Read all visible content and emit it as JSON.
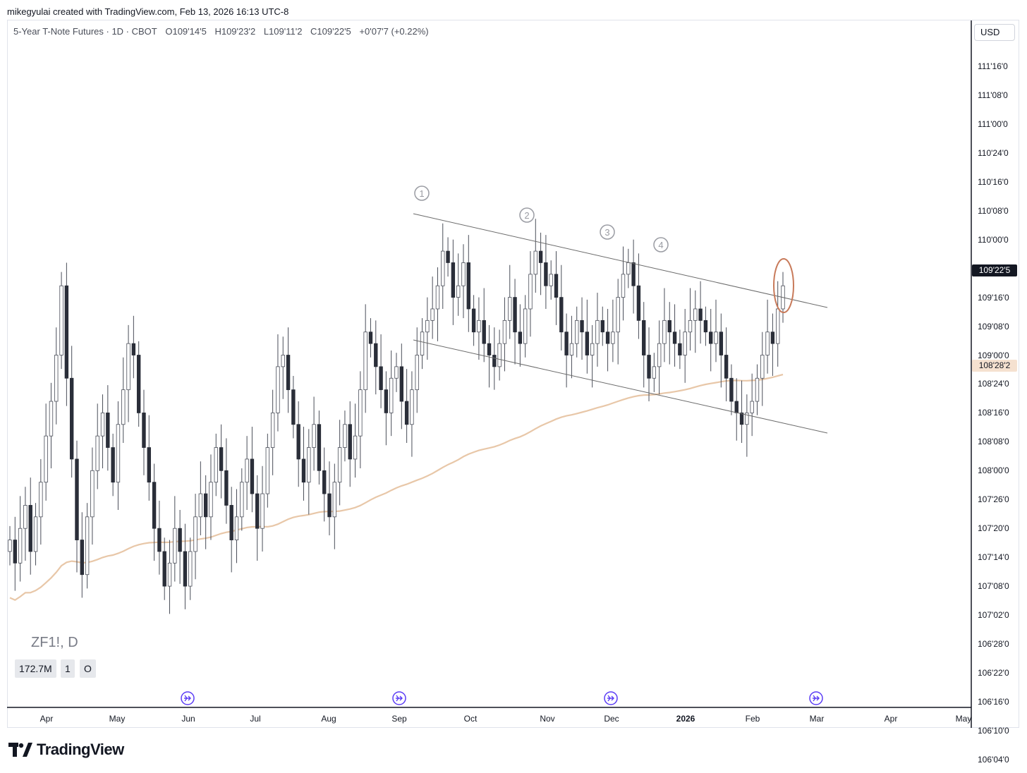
{
  "caption": "mikegyulai created with TradingView.com, Feb 13, 2026 16:13 UTC-8",
  "header": {
    "symbol_desc": "5-Year T-Note Futures · 1D · CBOT",
    "open": "O109'14'5",
    "high": "H109'23'2",
    "low": "L109'11'2",
    "close": "C109'22'5",
    "change": "+0'07'7 (+0.22%)"
  },
  "currency": "USD",
  "watermark": "ZF1!, D",
  "volume_boxes": [
    "172.7M",
    "1",
    "O"
  ],
  "brand": "TradingView",
  "colors": {
    "up_candle": "#ffffff",
    "down_candle": "#2a2e39",
    "wick": "#4a4e59",
    "ma_line": "#e8c7a8",
    "channel": "#6b6b6b",
    "circle_highlight": "#c87a5a",
    "event_icon": "#5b3df5",
    "last_price_bg": "#131722",
    "ma_tag_bg": "#f5e1d0"
  },
  "chart_data": {
    "type": "candlestick",
    "ylim": [
      "106'04'0",
      "111'16'0"
    ],
    "y_tick_labels": [
      "111'16'0",
      "111'08'0",
      "111'00'0",
      "110'24'0",
      "110'16'0",
      "110'08'0",
      "110'00'0",
      "109'24'0",
      "109'16'0",
      "109'08'0",
      "109'00'0",
      "108'24'0",
      "108'16'0",
      "108'08'0",
      "108'00'0",
      "107'26'0",
      "107'20'0",
      "107'14'0",
      "107'08'0",
      "107'02'0",
      "106'28'0",
      "106'22'0",
      "106'16'0",
      "106'10'0",
      "106'04'0"
    ],
    "x_tick_labels": [
      "Apr",
      "May",
      "Jun",
      "Jul",
      "Aug",
      "Sep",
      "Oct",
      "Nov",
      "Dec",
      "2026",
      "Feb",
      "Mar",
      "Apr",
      "May"
    ],
    "last_price": "109'22'5",
    "ma_value": "108'28'2",
    "wave_labels": [
      "1",
      "2",
      "3",
      "4"
    ],
    "grid": false,
    "closes": [
      107.4,
      107.2,
      107.5,
      107.7,
      107.3,
      107.6,
      107.9,
      108.3,
      108.6,
      109.0,
      109.6,
      108.8,
      108.1,
      107.4,
      107.1,
      107.6,
      108.0,
      108.3,
      108.5,
      108.2,
      107.9,
      108.4,
      108.7,
      109.1,
      109.0,
      108.5,
      108.2,
      107.9,
      107.5,
      107.3,
      107.0,
      107.2,
      107.5,
      107.3,
      107.0,
      107.3,
      107.6,
      107.8,
      107.6,
      107.9,
      108.2,
      108.0,
      107.7,
      107.4,
      107.6,
      107.9,
      108.1,
      107.8,
      107.5,
      107.8,
      108.2,
      108.5,
      108.9,
      109.0,
      108.7,
      108.4,
      108.1,
      107.9,
      108.2,
      108.4,
      108.0,
      107.8,
      107.6,
      107.9,
      108.2,
      108.4,
      108.1,
      108.3,
      108.7,
      109.2,
      109.1,
      108.9,
      108.7,
      108.5,
      108.8,
      108.9,
      108.6,
      108.4,
      108.7,
      109.0,
      109.2,
      109.3,
      109.4,
      109.6,
      109.9,
      109.8,
      109.5,
      109.6,
      109.8,
      109.4,
      109.2,
      109.3,
      109.1,
      109.0,
      108.9,
      109.1,
      109.3,
      109.5,
      109.2,
      109.1,
      109.4,
      109.7,
      109.9,
      109.8,
      109.6,
      109.7,
      109.5,
      109.2,
      109.0,
      109.1,
      109.3,
      109.2,
      109.0,
      109.1,
      109.3,
      109.2,
      109.1,
      109.2,
      109.5,
      109.7,
      109.8,
      109.6,
      109.3,
      109.0,
      108.8,
      108.9,
      109.1,
      109.3,
      109.2,
      109.1,
      109.0,
      109.2,
      109.3,
      109.4,
      109.3,
      109.2,
      109.1,
      109.2,
      109.0,
      108.8,
      108.6,
      108.5,
      108.4,
      108.5,
      108.6,
      108.8,
      109.0,
      109.2,
      109.1,
      109.4,
      109.6
    ]
  }
}
